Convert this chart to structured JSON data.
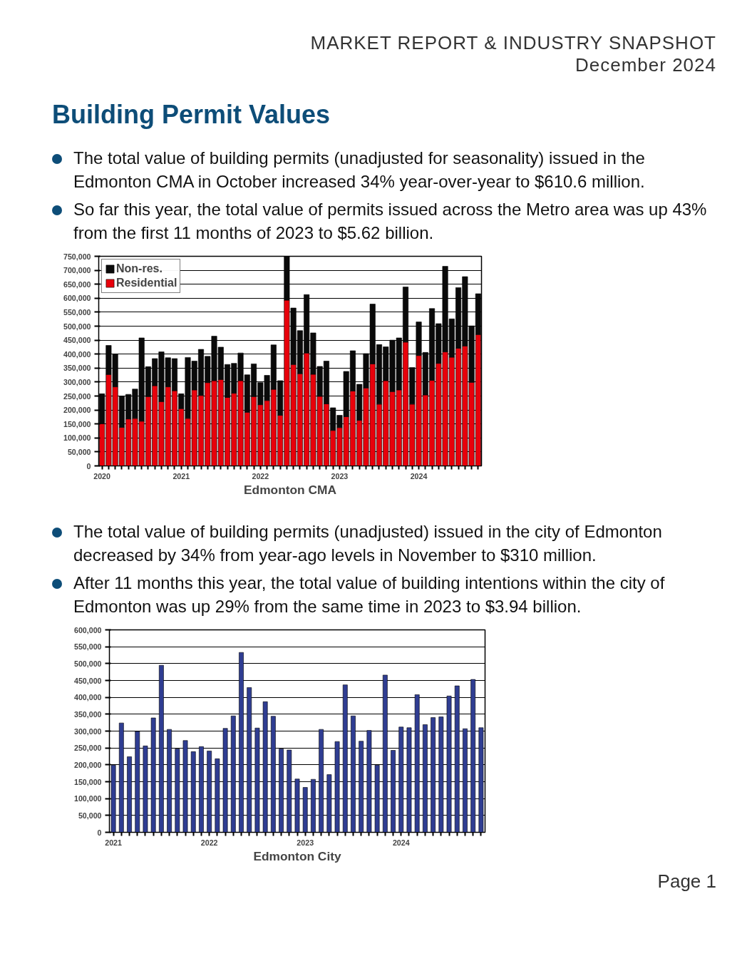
{
  "chart_data": [
    {
      "type": "bar",
      "title": "Building Permit Values",
      "xlabel": "Edmonton CMA",
      "stacked": true,
      "grid": "y",
      "legend": "top left",
      "annotations": [
        "MARKET REPORT & INDUSTRY SNAPSHOT",
        "December 2024",
        "The total value of building permits (unadjusted for seasonality) issued in the Edmonton CMA in October increased 34% year-over-year to $610.6 million.",
        "So far this year, the total value of permits issued across the Metro area was up 43% from the first 11 months of 2023 to $5.62 billion."
      ],
      "categories": [
        "2020",
        null,
        null,
        null,
        null,
        null,
        null,
        null,
        null,
        null,
        null,
        null,
        "2021",
        null,
        null,
        null,
        null,
        null,
        null,
        null,
        null,
        null,
        null,
        null,
        "2022",
        null,
        null,
        null,
        null,
        null,
        null,
        null,
        null,
        null,
        null,
        null,
        "2023",
        null,
        null,
        null,
        null,
        null,
        null,
        null,
        null,
        null,
        null,
        null,
        "2024",
        null,
        null,
        null,
        null,
        null,
        null,
        null,
        null,
        null
      ],
      "ylim": [
        0,
        750000
      ],
      "yticks": [
        {
          "value": 0,
          "label": "0"
        },
        {
          "value": 50000,
          "label": "50,000"
        },
        {
          "value": 100000,
          "label": "100,000"
        },
        {
          "value": 150000,
          "label": "150,000"
        },
        {
          "value": 200000,
          "label": "200,000"
        },
        {
          "value": 250000,
          "label": "250,000"
        },
        {
          "value": 300000,
          "label": "300,000"
        },
        {
          "value": 350000,
          "label": "350,000"
        },
        {
          "value": 400000,
          "label": "400,000"
        },
        {
          "value": 450000,
          "label": "450,000"
        },
        {
          "value": 500000,
          "label": "500,000"
        },
        {
          "value": 550000,
          "label": "550,000"
        },
        {
          "value": 600000,
          "label": "600,000"
        },
        {
          "value": 650000,
          "label": "650,000"
        },
        {
          "value": 700000,
          "label": "700,000"
        },
        {
          "value": 750000,
          "label": "750,000"
        }
      ],
      "series": [
        {
          "name": "Residential",
          "color": "#e8000b",
          "values": [
            151000,
            327000,
            283000,
            138000,
            168000,
            170000,
            160000,
            248000,
            287000,
            230000,
            283000,
            269000,
            205000,
            170000,
            272000,
            252000,
            298000,
            305000,
            309000,
            245000,
            260000,
            305000,
            192000,
            248000,
            219000,
            234000,
            274000,
            181000,
            593000,
            363000,
            330000,
            404000,
            328000,
            249000,
            222000,
            127000,
            137000,
            176000,
            268000,
            163000,
            279000,
            365000,
            221000,
            305000,
            266000,
            272000,
            443000,
            221000,
            395000,
            254000,
            306000,
            367000,
            408000,
            389000,
            421000,
            429000,
            299000,
            470000
          ]
        },
        {
          "name": "Non-res.",
          "color": "#0a0a0a",
          "values": [
            107000,
            104000,
            116000,
            112000,
            88000,
            105000,
            298000,
            107000,
            97000,
            178000,
            104000,
            115000,
            53000,
            218000,
            103000,
            165000,
            94000,
            159000,
            116000,
            118000,
            107000,
            99000,
            134000,
            117000,
            79000,
            90000,
            159000,
            124000,
            157000,
            202000,
            154000,
            209000,
            148000,
            107000,
            153000,
            81000,
            44000,
            162000,
            144000,
            129000,
            123000,
            214000,
            213000,
            121000,
            184000,
            186000,
            197000,
            131000,
            120000,
            152000,
            257000,
            142000,
            306000,
            137000,
            217000,
            248000,
            202000,
            146000
          ]
        }
      ]
    },
    {
      "type": "bar",
      "xlabel": "Edmonton City",
      "grid": "y",
      "annotations": [
        "The total value of building permits (unadjusted) issued in the city of Edmonton decreased by 34% from year-ago levels in November to $310 million.",
        "After 11 months this year, the total value of building intentions within the city of Edmonton was up 29% from the same time in 2023 to $3.94 billion.",
        "Page 1"
      ],
      "categories": [
        "2021",
        null,
        null,
        null,
        null,
        null,
        null,
        null,
        null,
        null,
        null,
        null,
        "2022",
        null,
        null,
        null,
        null,
        null,
        null,
        null,
        null,
        null,
        null,
        null,
        "2023",
        null,
        null,
        null,
        null,
        null,
        null,
        null,
        null,
        null,
        null,
        null,
        "2024",
        null,
        null,
        null,
        null,
        null,
        null,
        null,
        null,
        null,
        null
      ],
      "ylim": [
        0,
        600000
      ],
      "yticks": [
        {
          "value": 0,
          "label": "0"
        },
        {
          "value": 50000,
          "label": "50,000"
        },
        {
          "value": 100000,
          "label": "100,000"
        },
        {
          "value": 150000,
          "label": "150,000"
        },
        {
          "value": 200000,
          "label": "200,000"
        },
        {
          "value": 250000,
          "label": "250,000"
        },
        {
          "value": 300000,
          "label": "300,000"
        },
        {
          "value": 350000,
          "label": "350,000"
        },
        {
          "value": 400000,
          "label": "400,000"
        },
        {
          "value": 450000,
          "label": "450,000"
        },
        {
          "value": 500000,
          "label": "500,000"
        },
        {
          "value": 550000,
          "label": "550,000"
        },
        {
          "value": 600000,
          "label": "600,000"
        }
      ],
      "series": [
        {
          "color": "#2f3d92",
          "values": [
            199000,
            324000,
            224000,
            299000,
            256000,
            339000,
            495000,
            305000,
            247000,
            272000,
            239000,
            254000,
            241000,
            218000,
            308000,
            345000,
            533000,
            429000,
            309000,
            387000,
            344000,
            247000,
            244000,
            158000,
            133000,
            157000,
            305000,
            171000,
            269000,
            437000,
            345000,
            270000,
            302000,
            199000,
            466000,
            243000,
            312000,
            310000,
            408000,
            319000,
            340000,
            342000,
            404000,
            434000,
            307000,
            453000,
            310000
          ]
        }
      ]
    }
  ]
}
